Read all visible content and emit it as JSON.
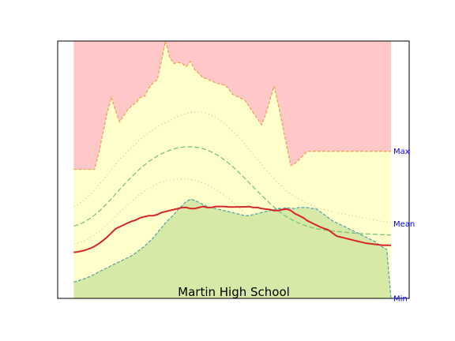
{
  "chart_data": {
    "type": "area",
    "title": "Martin High School",
    "xlabel": "",
    "ylabel": "",
    "x": [
      0,
      1,
      2,
      3,
      4,
      5,
      6,
      7,
      8,
      9,
      10,
      11,
      12,
      13,
      14,
      15,
      16,
      17,
      18,
      19,
      20,
      21,
      22,
      23,
      24,
      25,
      26,
      27,
      28,
      29,
      30,
      31,
      32,
      33,
      34,
      35,
      36,
      37,
      38,
      39,
      40,
      41,
      42,
      43,
      44,
      45,
      46,
      47,
      48,
      49,
      50,
      51,
      52,
      53,
      54,
      55,
      56,
      57,
      58,
      59,
      60,
      61,
      62,
      63,
      64,
      65,
      66,
      67,
      68,
      69,
      70,
      71,
      72,
      73,
      74,
      75,
      76
    ],
    "xlim": [
      -3.84,
      80.37
    ],
    "ylim": [
      0,
      1.26
    ],
    "grid": false,
    "legend": "none",
    "reference_labels": [
      {
        "text": "Max",
        "y": 0.72
      },
      {
        "text": "Mean",
        "y": 0.365
      },
      {
        "text": "Min",
        "y": 0.0
      }
    ],
    "series": [
      {
        "role": "max",
        "values": [
          0.632,
          0.632,
          0.632,
          0.632,
          0.632,
          0.632,
          0.632,
          0.632,
          0.632,
          0.632,
          0.632,
          0.632,
          0.632,
          0.632,
          0.632,
          0.632,
          0.632,
          0.632,
          0.632,
          0.632,
          0.632,
          0.632,
          0.632,
          0.632,
          0.632,
          0.632,
          0.632,
          0.632,
          0.632,
          0.632,
          0.632,
          0.632,
          0.632,
          0.632,
          0.632,
          0.632,
          0.632,
          0.632,
          0.632,
          0.632,
          0.632,
          0.632,
          0.632,
          0.632,
          0.632,
          0.632,
          0.632,
          0.632,
          0.632,
          0.632,
          0.632,
          0.632,
          0.632,
          0.632,
          0.632,
          0.632,
          0.632,
          0.632,
          0.632,
          0.632,
          0.632,
          0.632,
          0.632,
          0.632,
          0.632,
          0.632,
          0.632,
          0.632,
          0.632,
          0.632,
          0.632,
          0.632,
          0.632,
          0.632,
          0.632,
          0.632,
          0.632
        ]
      },
      {
        "role": "record_high",
        "values": [
          0.632,
          0.632,
          0.632,
          0.632,
          0.632,
          0.632,
          0.71,
          0.81,
          0.905,
          0.985,
          0.92,
          0.865,
          0.895,
          0.925,
          0.945,
          0.96,
          0.985,
          0.99,
          1.03,
          1.055,
          1.07,
          1.16,
          1.26,
          1.18,
          1.15,
          1.155,
          1.15,
          1.135,
          1.16,
          1.12,
          1.1,
          1.08,
          1.075,
          1.065,
          1.055,
          1.05,
          1.045,
          1.03,
          1.0,
          0.99,
          0.98,
          0.97,
          0.94,
          0.91,
          0.88,
          0.85,
          0.9,
          0.97,
          1.04,
          0.95,
          0.85,
          0.75,
          0.65,
          0.66,
          0.68,
          0.7,
          0.72,
          0.72,
          0.72,
          0.72,
          0.72,
          0.72,
          0.72,
          0.72,
          0.72,
          0.72,
          0.72,
          0.72,
          0.72,
          0.72,
          0.72,
          0.72,
          0.72,
          0.72,
          0.72,
          0.72,
          0.72
        ]
      },
      {
        "role": "upper_dotted",
        "values": [
          0.45,
          0.46,
          0.475,
          0.49,
          0.51,
          0.53,
          0.555,
          0.58,
          0.605,
          0.63,
          0.655,
          0.68,
          0.7,
          0.72,
          0.74,
          0.76,
          0.78,
          0.795,
          0.81,
          0.825,
          0.84,
          0.85,
          0.86,
          0.87,
          0.88,
          0.89,
          0.9,
          0.905,
          0.91,
          0.912,
          0.913,
          0.91,
          0.905,
          0.897,
          0.886,
          0.873,
          0.858,
          0.84,
          0.82,
          0.8,
          0.778,
          0.755,
          0.73,
          0.705,
          0.68,
          0.655,
          0.63,
          0.608,
          0.587,
          0.566,
          0.546,
          0.527,
          0.51,
          0.497,
          0.486,
          0.475,
          0.465,
          0.455,
          0.448,
          0.44,
          0.435,
          0.43,
          0.425,
          0.42,
          0.416,
          0.412,
          0.408,
          0.404,
          0.4,
          0.396,
          0.392,
          0.388,
          0.384,
          0.38,
          0.377,
          0.374,
          0.37
        ]
      },
      {
        "role": "mean_dashed",
        "values": [
          0.355,
          0.36,
          0.368,
          0.38,
          0.393,
          0.408,
          0.425,
          0.445,
          0.465,
          0.487,
          0.51,
          0.533,
          0.555,
          0.578,
          0.598,
          0.618,
          0.637,
          0.654,
          0.67,
          0.684,
          0.697,
          0.708,
          0.717,
          0.725,
          0.732,
          0.737,
          0.74,
          0.742,
          0.742,
          0.741,
          0.738,
          0.733,
          0.726,
          0.717,
          0.706,
          0.694,
          0.68,
          0.664,
          0.647,
          0.628,
          0.608,
          0.588,
          0.567,
          0.546,
          0.525,
          0.505,
          0.485,
          0.465,
          0.447,
          0.43,
          0.414,
          0.4,
          0.388,
          0.377,
          0.368,
          0.36,
          0.353,
          0.347,
          0.342,
          0.338,
          0.335,
          0.332,
          0.33,
          0.328,
          0.326,
          0.324,
          0.322,
          0.32,
          0.318,
          0.317,
          0.316,
          0.315,
          0.314,
          0.313,
          0.312,
          0.311,
          0.31
        ]
      },
      {
        "role": "lower_dotted",
        "values": [
          0.265,
          0.27,
          0.277,
          0.287,
          0.298,
          0.311,
          0.326,
          0.343,
          0.361,
          0.38,
          0.4,
          0.42,
          0.44,
          0.46,
          0.478,
          0.495,
          0.511,
          0.526,
          0.539,
          0.55,
          0.56,
          0.568,
          0.574,
          0.579,
          0.582,
          0.584,
          0.585,
          0.584,
          0.582,
          0.578,
          0.572,
          0.565,
          0.556,
          0.545,
          0.533,
          0.52,
          0.506,
          0.49,
          0.473,
          0.455,
          0.437,
          0.418,
          0.399,
          0.38,
          0.362,
          0.344,
          0.327,
          0.311,
          0.296,
          0.282,
          0.27,
          0.26,
          0.252,
          0.245,
          0.24,
          0.236,
          0.233,
          0.23,
          0.228,
          0.226,
          0.224,
          0.222,
          0.22,
          0.219,
          0.218,
          0.217,
          0.216,
          0.215,
          0.214,
          0.213,
          0.212,
          0.211,
          0.21,
          0.209,
          0.208,
          0.207,
          0.206
        ]
      },
      {
        "role": "current_year",
        "values": [
          0.225,
          0.228,
          0.232,
          0.238,
          0.245,
          0.255,
          0.268,
          0.283,
          0.3,
          0.32,
          0.34,
          0.35,
          0.36,
          0.37,
          0.378,
          0.385,
          0.395,
          0.4,
          0.405,
          0.405,
          0.41,
          0.42,
          0.425,
          0.43,
          0.435,
          0.44,
          0.445,
          0.445,
          0.44,
          0.44,
          0.445,
          0.45,
          0.445,
          0.445,
          0.45,
          0.45,
          0.45,
          0.448,
          0.447,
          0.448,
          0.448,
          0.448,
          0.45,
          0.445,
          0.445,
          0.44,
          0.437,
          0.435,
          0.43,
          0.43,
          0.435,
          0.438,
          0.43,
          0.415,
          0.405,
          0.395,
          0.38,
          0.37,
          0.36,
          0.35,
          0.342,
          0.335,
          0.32,
          0.305,
          0.3,
          0.295,
          0.29,
          0.285,
          0.28,
          0.275,
          0.27,
          0.268,
          0.265,
          0.263,
          0.26,
          0.26,
          0.26
        ]
      },
      {
        "role": "record_low",
        "values": [
          0.08,
          0.085,
          0.092,
          0.1,
          0.108,
          0.118,
          0.13,
          0.14,
          0.15,
          0.16,
          0.17,
          0.18,
          0.19,
          0.2,
          0.21,
          0.225,
          0.24,
          0.255,
          0.275,
          0.295,
          0.32,
          0.345,
          0.37,
          0.39,
          0.41,
          0.435,
          0.455,
          0.475,
          0.485,
          0.48,
          0.47,
          0.46,
          0.45,
          0.445,
          0.44,
          0.435,
          0.43,
          0.425,
          0.42,
          0.415,
          0.41,
          0.405,
          0.405,
          0.41,
          0.415,
          0.42,
          0.425,
          0.43,
          0.435,
          0.44,
          0.44,
          0.445,
          0.44,
          0.44,
          0.445,
          0.445,
          0.445,
          0.44,
          0.44,
          0.425,
          0.41,
          0.395,
          0.38,
          0.37,
          0.36,
          0.35,
          0.34,
          0.33,
          0.32,
          0.31,
          0.3,
          0.29,
          0.28,
          0.265,
          0.25,
          0.24,
          0.0
        ]
      }
    ]
  }
}
